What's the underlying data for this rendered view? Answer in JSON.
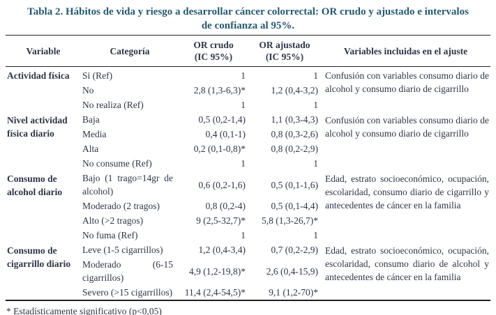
{
  "title": "Tabla 2. Hábitos de vida y riesgo a desarrollar cáncer colorrectal: OR crudo y ajustado e intervalos de confianza al 95%.",
  "footnote": "* Estadísticamente significativo (p<0,05)",
  "colors": {
    "title_text": "#235a70",
    "body_text": "#2e3547",
    "rule": "#1f1f1f",
    "background": "#ffffff"
  },
  "table": {
    "headers": {
      "variable": "Variable",
      "categoria": "Categoría",
      "or_crudo_line1": "OR crudo",
      "or_crudo_line2": "(IC 95%)",
      "or_ajustado_line1": "OR ajustado",
      "or_ajustado_line2": "(IC 95%)",
      "ajuste": "Variables incluidas en el ajuste"
    },
    "rows": [
      {
        "variable": "Actividad física",
        "categoria": "Si (Ref)",
        "or_crudo": "1",
        "or_ajustado": "1",
        "ajuste": "Confusión con variables consumo diario de alcohol y consumo diario de cigarrillo"
      },
      {
        "categoria": "No",
        "or_crudo": "2,8 (1,3-6,3)*",
        "or_ajustado": "1,2 (0,4-3,2)"
      },
      {
        "categoria": "No realiza (Ref)",
        "or_crudo": "1",
        "or_ajustado": "1"
      },
      {
        "variable": "Nivel actividad física diario",
        "categoria": "Baja",
        "or_crudo": "0,5 (0,2-1,4)",
        "or_ajustado": "1,1 (0,3-4,3)",
        "ajuste": "Confusión con variables consumo diario de alcohol y consumo diario de cigarrillo"
      },
      {
        "categoria": "Media",
        "or_crudo": "0,4 (0,1-1)",
        "or_ajustado": "0,8 (0,3-2,6)"
      },
      {
        "categoria": "Alta",
        "or_crudo": "0,2 (0,1-0,8)*",
        "or_ajustado": "0,8 (0,2-2,9)"
      },
      {
        "categoria": "No consume (Ref)",
        "or_crudo": "1",
        "or_ajustado": "1"
      },
      {
        "variable": "Consumo de alcohol diario",
        "categoria": "Bajo (1 trago=14gr de alcohol)",
        "or_crudo": "0,6 (0,2-1,6)",
        "or_ajustado": "0,5 (0,1-1,6)",
        "ajuste": "Edad, estrato socioeconómico, ocupación, escolaridad, consumo diario de cigarrillo y antecedentes de cáncer en la familia"
      },
      {
        "categoria": "Moderado (2 tragos)",
        "or_crudo": "0,8 (0,2-4)",
        "or_ajustado": "0,5 (0,1-4,4)"
      },
      {
        "categoria": "Alto (>2 tragos)",
        "or_crudo": "9 (2,5-32,7)*",
        "or_ajustado": "5,8 (1,3-26,7)*"
      },
      {
        "categoria": "No fuma (Ref)",
        "or_crudo": "1",
        "or_ajustado": "1"
      },
      {
        "variable": "Consumo de cigarrillo diario",
        "categoria": "Leve (1-5 cigarrillos)",
        "or_crudo": "1,2 (0,4-3,4)",
        "or_ajustado": "0,7 (0,2-2,9)",
        "ajuste": "Edad, estrato socioeconómico, ocupación, escolaridad, consumo diario de alcohol y antecedentes de cáncer en la familia"
      },
      {
        "categoria": "Moderado (6-15 cigarrillos)",
        "or_crudo": "4,9 (1,2-19,8)*",
        "or_ajustado": "2,6 (0,4-15,9)"
      },
      {
        "categoria": "Severo (>15 cigarrillos)",
        "or_crudo": "11,4 (2,4-54,5)*",
        "or_ajustado": "9,1 (1,2-70)*"
      }
    ]
  }
}
